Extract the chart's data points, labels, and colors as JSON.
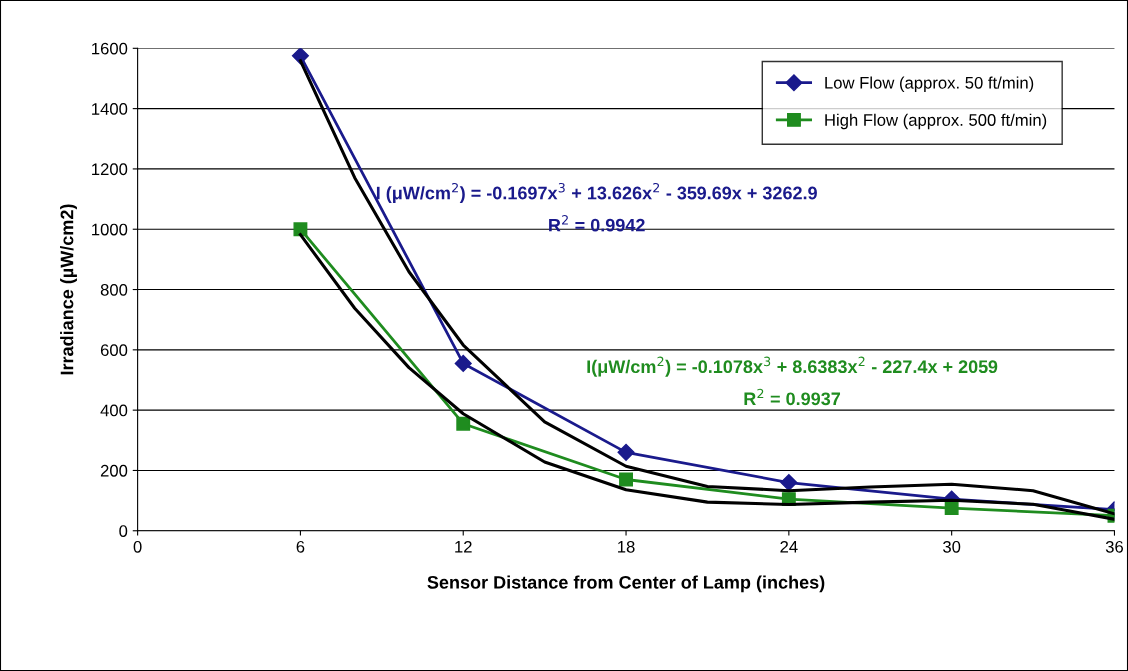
{
  "chart_data": {
    "type": "line",
    "xlabel": "Sensor Distance from Center of Lamp (inches)",
    "ylabel": "Irradiance (µW/cm2)",
    "xlim": [
      0,
      36
    ],
    "xticks": [
      0,
      6,
      12,
      18,
      24,
      30,
      36
    ],
    "ylim": [
      0,
      1600
    ],
    "yticks": [
      0,
      200,
      400,
      600,
      800,
      1000,
      1200,
      1400,
      1600
    ],
    "grid": "y",
    "legend": "top right",
    "line_style": "solid",
    "series": [
      {
        "name": "Low Flow (approx. 50 ft/min)",
        "color": "#1a1a8c",
        "marker": "diamond",
        "x": [
          6,
          12,
          18,
          24,
          30,
          36
        ],
        "values": [
          1575,
          555,
          260,
          160,
          105,
          70
        ]
      },
      {
        "name": "High Flow (approx. 500 ft/min)",
        "color": "#1f8c1f",
        "marker": "square",
        "x": [
          6,
          12,
          18,
          24,
          30,
          36
        ],
        "values": [
          1000,
          355,
          170,
          105,
          75,
          50
        ]
      },
      {
        "color": "#000000",
        "marker": "none",
        "x": [
          6,
          8,
          10,
          12,
          15,
          18,
          21,
          24,
          27,
          30,
          33,
          36
        ],
        "values": [
          1559,
          1171,
          859,
          616,
          361,
          214,
          147,
          133,
          145,
          154,
          133,
          56
        ]
      },
      {
        "color": "#000000",
        "marker": "none",
        "x": [
          6,
          8,
          10,
          12,
          15,
          18,
          21,
          24,
          27,
          30,
          33,
          36
        ],
        "values": [
          982,
          738,
          541,
          388,
          228,
          136,
          95,
          87,
          95,
          101,
          88,
          38
        ]
      }
    ],
    "annotations": [
      "I (μW/cm$^{2}$) = -0.1697x$^{3}$ + 13.626x$^{2}$ - 359.69x + 3262.9",
      "R$^{2}$ = 0.9942",
      "I(μW/cm$^{2}$) = -0.1078x$^{3}$ + 8.6383x$^{2}$ - 227.4x + 2059",
      "R$^{2}$ = 0.9937"
    ]
  }
}
